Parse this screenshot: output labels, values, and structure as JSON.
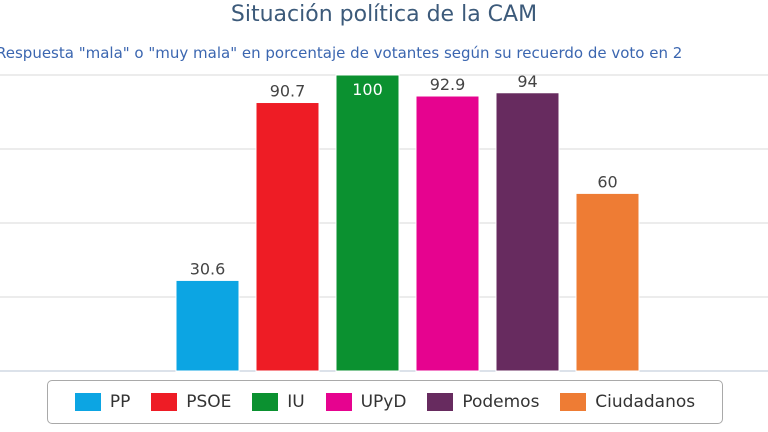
{
  "chart_data": {
    "type": "bar",
    "title": "Situación política de la CAM",
    "subtitle": "Respuesta \"mala\" o \"muy mala\" en porcentaje de votantes según su recuerdo de voto en 2",
    "xlabel": "",
    "ylabel": "",
    "ylim": [
      0,
      100
    ],
    "gridlines": [
      0,
      25,
      50,
      75,
      100
    ],
    "categories": [
      "PP",
      "PSOE",
      "IU",
      "UPyD",
      "Podemos",
      "Ciudadanos"
    ],
    "values": [
      30.6,
      90.7,
      100,
      92.9,
      94,
      60
    ],
    "value_labels": [
      "30.6",
      "90.7",
      "100",
      "92.9",
      "94",
      "60"
    ],
    "colors": [
      "#0ca5e3",
      "#ee1c25",
      "#0b9130",
      "#e6038f",
      "#672b5f",
      "#ee7c34"
    ],
    "legend_position": "bottom"
  }
}
